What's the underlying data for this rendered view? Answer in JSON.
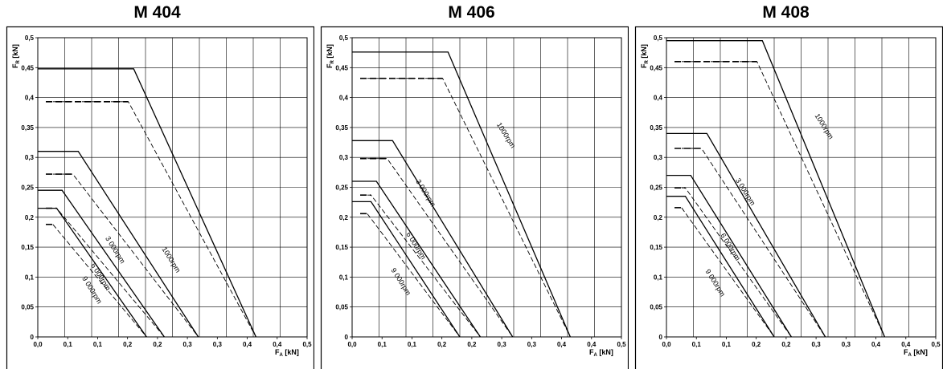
{
  "chart_data": [
    {
      "type": "line",
      "title": "M 404",
      "xlabel": "F_A [kN]",
      "ylabel": "F_R [kN]",
      "xlim": [
        0,
        0.5
      ],
      "ylim": [
        0,
        0.5
      ],
      "x_ticks": [
        "0,0",
        "0,1",
        "0,1",
        "0,2",
        "0,2",
        "0,3",
        "0,3",
        "0,4",
        "0,4",
        "0,5"
      ],
      "y_ticks": [
        "0",
        "0,05",
        "0,1",
        "0,15",
        "0,2",
        "0,25",
        "0,3",
        "0,35",
        "0,4",
        "0,45",
        "0,5"
      ],
      "grid": true,
      "series": [
        {
          "name": "1000rpm",
          "style": "solid",
          "points": [
            [
              0,
              0.448
            ],
            [
              0.178,
              0.448
            ],
            [
              0.405,
              0
            ]
          ]
        },
        {
          "name": "",
          "style": "dashed",
          "points": [
            [
              0.015,
              0.393
            ],
            [
              0.168,
              0.393
            ],
            [
              0.405,
              0
            ]
          ]
        },
        {
          "name": "3 000rpm",
          "style": "solid",
          "points": [
            [
              0,
              0.31
            ],
            [
              0.075,
              0.31
            ],
            [
              0.298,
              0
            ]
          ]
        },
        {
          "name": "",
          "style": "dashed",
          "points": [
            [
              0.015,
              0.272
            ],
            [
              0.065,
              0.272
            ],
            [
              0.298,
              0
            ]
          ]
        },
        {
          "name": "6 000rpm",
          "style": "solid",
          "points": [
            [
              0,
              0.245
            ],
            [
              0.045,
              0.245
            ],
            [
              0.235,
              0
            ]
          ]
        },
        {
          "name": "",
          "style": "dashed",
          "points": [
            [
              0.015,
              0.215
            ],
            [
              0.035,
              0.215
            ],
            [
              0.235,
              0
            ]
          ]
        },
        {
          "name": "9 000rpm",
          "style": "solid",
          "points": [
            [
              0,
              0.215
            ],
            [
              0.035,
              0.215
            ],
            [
              0.202,
              0
            ]
          ]
        },
        {
          "name": "",
          "style": "dashed",
          "points": [
            [
              0.015,
              0.188
            ],
            [
              0.028,
              0.188
            ],
            [
              0.202,
              0
            ]
          ]
        }
      ],
      "curve_labels": [
        {
          "text": "1000rpm",
          "x": 0.23,
          "y": 0.147
        },
        {
          "text": "3 000rpm",
          "x": 0.125,
          "y": 0.165
        },
        {
          "text": "6 000rpm",
          "x": 0.098,
          "y": 0.12
        },
        {
          "text": "9 000rpm",
          "x": 0.082,
          "y": 0.098
        }
      ]
    },
    {
      "type": "line",
      "title": "M 406",
      "xlabel": "F_A [kN]",
      "ylabel": "F_R [kN]",
      "xlim": [
        0,
        0.5
      ],
      "ylim": [
        0,
        0.5
      ],
      "x_ticks": [
        "0,0",
        "0,1",
        "0,1",
        "0,2",
        "0,2",
        "0,3",
        "0,3",
        "0,4",
        "0,4",
        "0,5"
      ],
      "y_ticks": [
        "0",
        "0,05",
        "0,1",
        "0,15",
        "0,2",
        "0,25",
        "0,3",
        "0,35",
        "0,4",
        "0,45",
        "0,5"
      ],
      "grid": true,
      "series": [
        {
          "name": "1000rpm",
          "style": "solid",
          "points": [
            [
              0,
              0.476
            ],
            [
              0.178,
              0.476
            ],
            [
              0.405,
              0
            ]
          ]
        },
        {
          "name": "",
          "style": "dashed",
          "points": [
            [
              0.015,
              0.432
            ],
            [
              0.168,
              0.432
            ],
            [
              0.405,
              0
            ]
          ]
        },
        {
          "name": "3 000rpm",
          "style": "solid",
          "points": [
            [
              0,
              0.328
            ],
            [
              0.075,
              0.328
            ],
            [
              0.298,
              0
            ]
          ]
        },
        {
          "name": "",
          "style": "dashed",
          "points": [
            [
              0.015,
              0.298
            ],
            [
              0.065,
              0.298
            ],
            [
              0.298,
              0
            ]
          ]
        },
        {
          "name": "6 000rpm",
          "style": "solid",
          "points": [
            [
              0,
              0.26
            ],
            [
              0.045,
              0.26
            ],
            [
              0.238,
              0
            ]
          ]
        },
        {
          "name": "",
          "style": "dashed",
          "points": [
            [
              0.015,
              0.237
            ],
            [
              0.035,
              0.237
            ],
            [
              0.238,
              0
            ]
          ]
        },
        {
          "name": "9 000rpm",
          "style": "solid",
          "points": [
            [
              0,
              0.226
            ],
            [
              0.035,
              0.226
            ],
            [
              0.2,
              0
            ]
          ]
        },
        {
          "name": "",
          "style": "dashed",
          "points": [
            [
              0.015,
              0.206
            ],
            [
              0.028,
              0.206
            ],
            [
              0.2,
              0
            ]
          ]
        }
      ],
      "curve_labels": [
        {
          "text": "1000rpm",
          "x": 0.268,
          "y": 0.355
        },
        {
          "text": "3 000rpm",
          "x": 0.118,
          "y": 0.26
        },
        {
          "text": "6 000rpm",
          "x": 0.1,
          "y": 0.172
        },
        {
          "text": "9 000rpm",
          "x": 0.072,
          "y": 0.112
        }
      ]
    },
    {
      "type": "line",
      "title": "M 408",
      "xlabel": "F_A [kN]",
      "ylabel": "F_R [kN]",
      "xlim": [
        0,
        0.5
      ],
      "ylim": [
        0,
        0.5
      ],
      "x_ticks": [
        "0,0",
        "0,1",
        "0,1",
        "0,2",
        "0,2",
        "0,3",
        "0,3",
        "0,4",
        "0,4",
        "0,5"
      ],
      "y_ticks": [
        "0",
        "0,05",
        "0,1",
        "0,15",
        "0,2",
        "0,25",
        "0,3",
        "0,35",
        "0,4",
        "0,45",
        "0,5"
      ],
      "grid": true,
      "series": [
        {
          "name": "1000rpm",
          "style": "solid",
          "points": [
            [
              0,
              0.495
            ],
            [
              0.178,
              0.495
            ],
            [
              0.405,
              0
            ]
          ]
        },
        {
          "name": "",
          "style": "dashed",
          "points": [
            [
              0.015,
              0.46
            ],
            [
              0.168,
              0.46
            ],
            [
              0.405,
              0
            ]
          ]
        },
        {
          "name": "3 000rpm",
          "style": "solid",
          "points": [
            [
              0,
              0.34
            ],
            [
              0.075,
              0.34
            ],
            [
              0.295,
              0
            ]
          ]
        },
        {
          "name": "",
          "style": "dashed",
          "points": [
            [
              0.015,
              0.315
            ],
            [
              0.065,
              0.315
            ],
            [
              0.295,
              0
            ]
          ]
        },
        {
          "name": "6 000rpm",
          "style": "solid",
          "points": [
            [
              0,
              0.27
            ],
            [
              0.045,
              0.27
            ],
            [
              0.232,
              0
            ]
          ]
        },
        {
          "name": "",
          "style": "dashed",
          "points": [
            [
              0.015,
              0.249
            ],
            [
              0.035,
              0.249
            ],
            [
              0.232,
              0
            ]
          ]
        },
        {
          "name": "9 000rpm",
          "style": "solid",
          "points": [
            [
              0,
              0.235
            ],
            [
              0.035,
              0.235
            ],
            [
              0.2,
              0
            ]
          ]
        },
        {
          "name": "",
          "style": "dashed",
          "points": [
            [
              0.015,
              0.216
            ],
            [
              0.028,
              0.216
            ],
            [
              0.2,
              0
            ]
          ]
        }
      ],
      "curve_labels": [
        {
          "text": "1000rpm",
          "x": 0.275,
          "y": 0.37
        },
        {
          "text": "3 000rpm",
          "x": 0.128,
          "y": 0.262
        },
        {
          "text": "6 000rpm",
          "x": 0.1,
          "y": 0.17
        },
        {
          "text": "9 000rpm",
          "x": 0.072,
          "y": 0.11
        }
      ]
    }
  ]
}
